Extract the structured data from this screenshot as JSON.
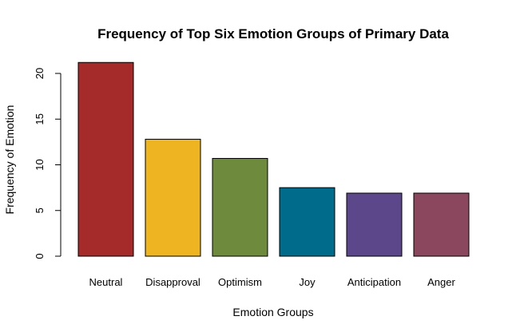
{
  "chart_data": {
    "type": "bar",
    "title": "Frequency of Top Six Emotion Groups of Primary Data",
    "xlabel": "Emotion Groups",
    "ylabel": "Frequency of Emotion",
    "categories": [
      "Neutral",
      "Disapproval",
      "Optimism",
      "Joy",
      "Anticipation",
      "Anger"
    ],
    "values": [
      21.2,
      12.8,
      10.7,
      7.5,
      6.9,
      6.9
    ],
    "colors": [
      "#a52a2a",
      "#eeb422",
      "#6e8b3d",
      "#006b8b",
      "#5d478b",
      "#8b475d"
    ],
    "yticks": [
      0,
      5,
      10,
      15,
      20
    ],
    "ylim": [
      0,
      21.2
    ],
    "grid": false,
    "legend": "none"
  }
}
